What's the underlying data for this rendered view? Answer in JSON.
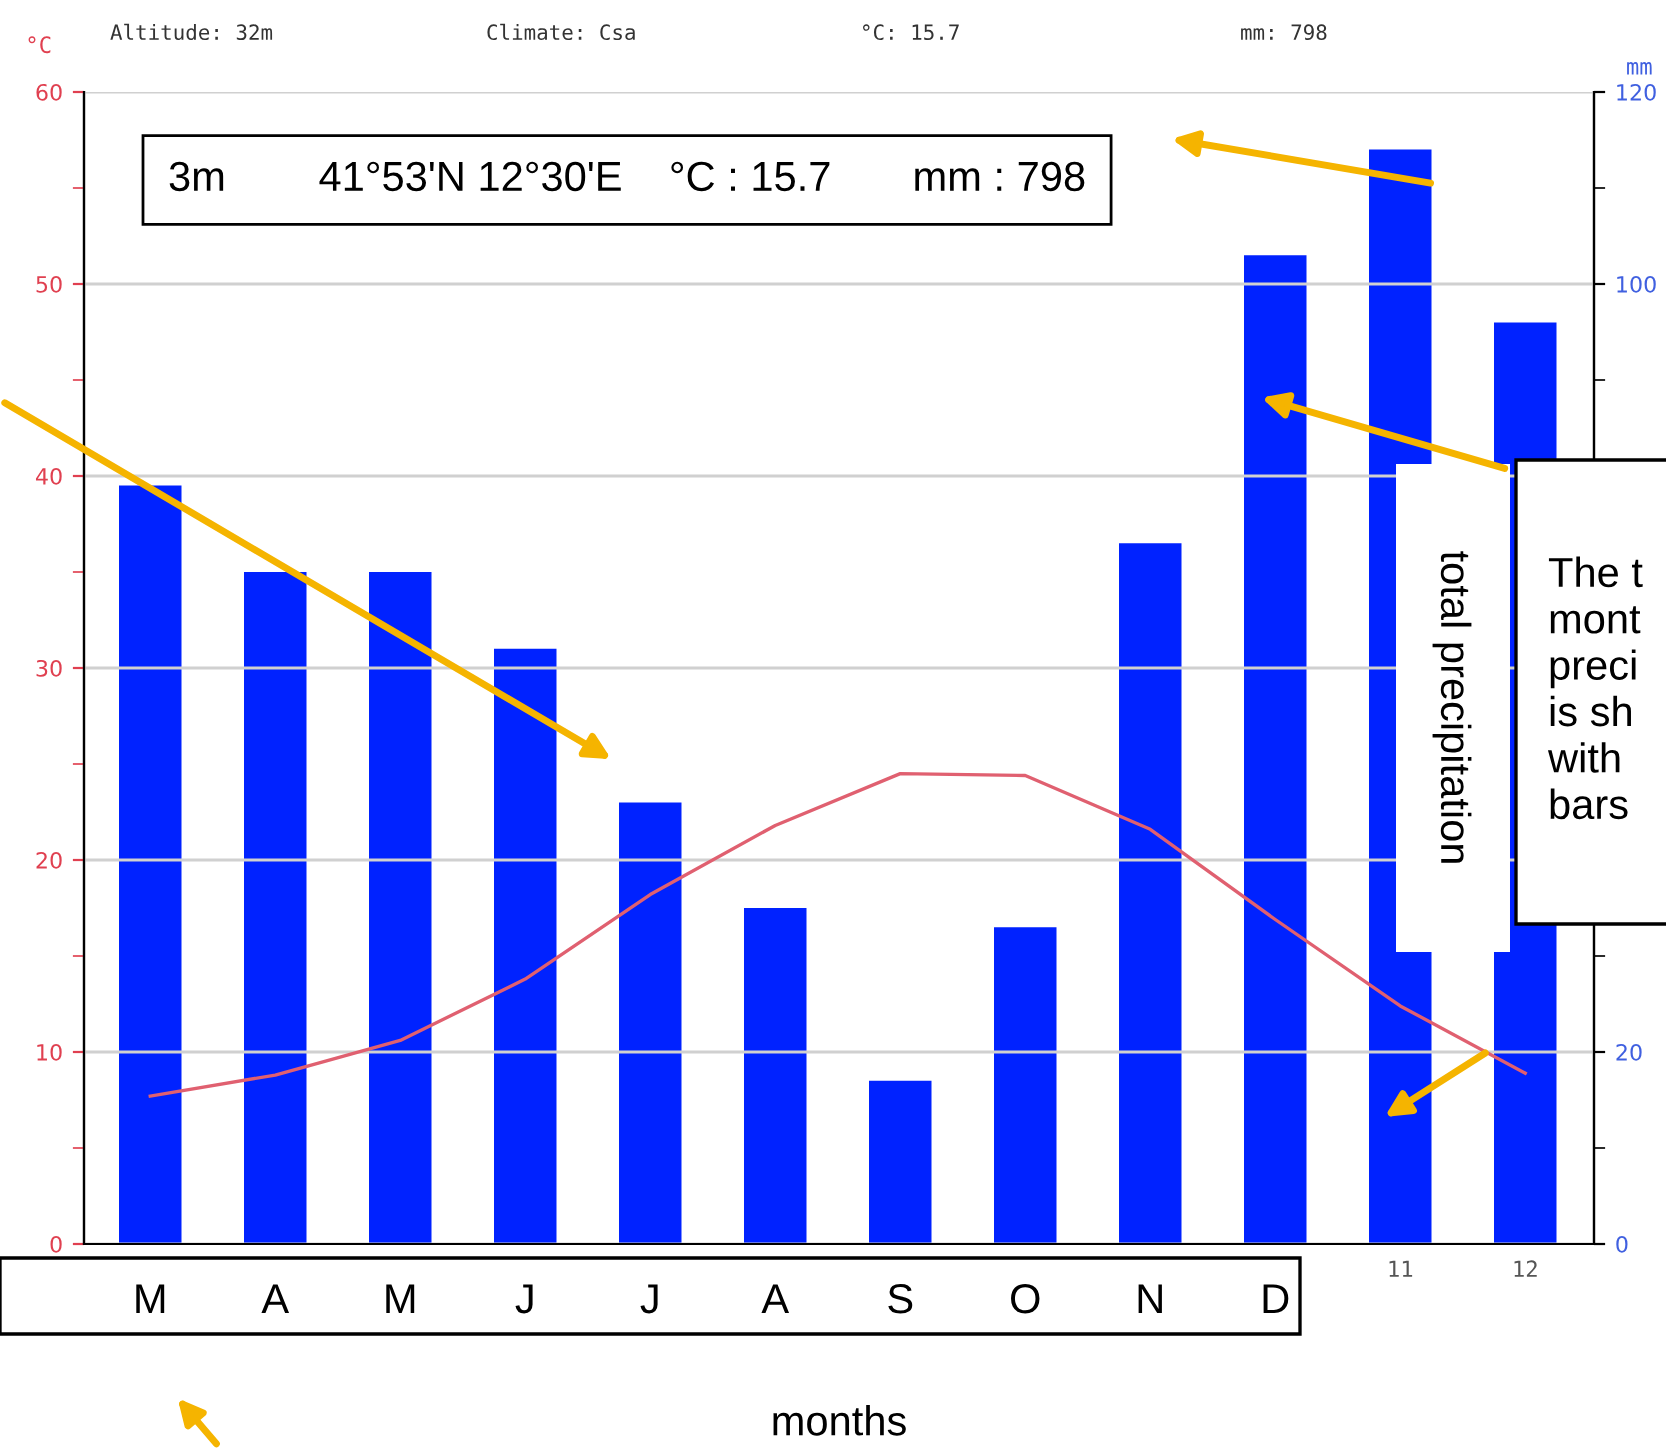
{
  "chart_data": {
    "type": "bar",
    "categories": [
      "M",
      "A",
      "M",
      "J",
      "J",
      "A",
      "S",
      "O",
      "N",
      "D",
      "11",
      "12"
    ],
    "series": [
      {
        "axis": "y2",
        "color": "#0022ff",
        "values": [
          79,
          70,
          70,
          62,
          46,
          35,
          17,
          33,
          73,
          103,
          114,
          96
        ]
      },
      {
        "type": "line",
        "color": "#e06070",
        "values": [
          7.7,
          8.8,
          10.6,
          13.8,
          18.2,
          21.8,
          24.5,
          24.4,
          21.6,
          16.9,
          12.4,
          8.9
        ]
      }
    ],
    "ylabel": "°C",
    "y2label": "mm",
    "xlabel": "months",
    "ylim": [
      0,
      60
    ],
    "yticks": [
      0,
      {
        "value": 5,
        "label": null
      },
      10,
      {
        "value": 15,
        "label": null
      },
      20,
      {
        "value": 25,
        "label": null
      },
      30,
      {
        "value": 35,
        "label": null
      },
      40,
      {
        "value": 45,
        "label": null
      },
      50,
      {
        "value": 55,
        "label": null
      },
      60
    ],
    "y2lim": [
      0,
      120
    ],
    "y2ticks": [
      0,
      {
        "value": 10,
        "label": null
      },
      20,
      {
        "value": 30,
        "label": null
      },
      {
        "value": 40,
        "label": null
      },
      {
        "value": 50,
        "label": null
      },
      {
        "value": 60,
        "label": null
      },
      {
        "value": 70,
        "label": null
      },
      {
        "value": 80,
        "label": null
      },
      {
        "value": 90,
        "label": null
      },
      100,
      {
        "value": 110,
        "label": null
      },
      120
    ],
    "grid": "y",
    "annotations": [
      "Altitude: 32m",
      "Climate: Csa",
      "°C: 15.7",
      "mm: 798",
      "3m        41°53'N 12°30'E    °C : 15.7       mm : 798",
      "total precipitation",
      "The t\nmont\npreci\nis sh\nwith\nbars"
    ]
  }
}
